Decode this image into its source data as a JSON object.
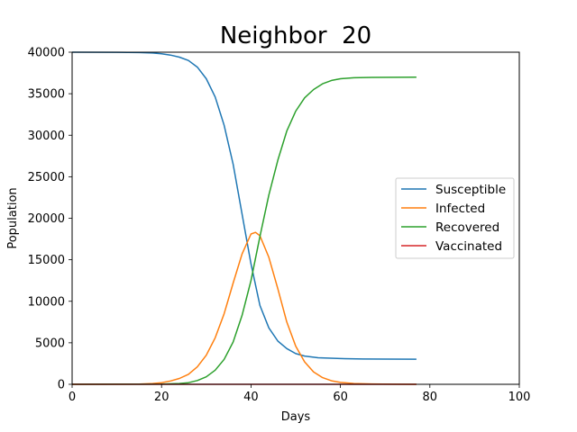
{
  "chart_data": {
    "type": "line",
    "title": "Neighbor  20",
    "xlabel": "Days",
    "ylabel": "Population",
    "xlim": [
      0,
      100
    ],
    "ylim": [
      0,
      40000
    ],
    "xticks": [
      0,
      20,
      40,
      60,
      80,
      100
    ],
    "yticks": [
      0,
      5000,
      10000,
      15000,
      20000,
      25000,
      30000,
      35000,
      40000
    ],
    "grid": false,
    "legend_position": "center-right",
    "series": [
      {
        "name": "Susceptible",
        "color": "#1f77b4",
        "points": [
          [
            0,
            40000
          ],
          [
            10,
            39990
          ],
          [
            15,
            39960
          ],
          [
            18,
            39900
          ],
          [
            20,
            39800
          ],
          [
            22,
            39650
          ],
          [
            24,
            39400
          ],
          [
            26,
            39000
          ],
          [
            28,
            38200
          ],
          [
            30,
            36800
          ],
          [
            32,
            34600
          ],
          [
            34,
            31200
          ],
          [
            36,
            26500
          ],
          [
            38,
            20500
          ],
          [
            40,
            14500
          ],
          [
            42,
            9500
          ],
          [
            44,
            6800
          ],
          [
            46,
            5200
          ],
          [
            48,
            4300
          ],
          [
            50,
            3700
          ],
          [
            52,
            3400
          ],
          [
            55,
            3200
          ],
          [
            60,
            3100
          ],
          [
            65,
            3050
          ],
          [
            70,
            3030
          ],
          [
            77,
            3020
          ]
        ]
      },
      {
        "name": "Infected",
        "color": "#ff7f0e",
        "points": [
          [
            0,
            0
          ],
          [
            10,
            10
          ],
          [
            15,
            30
          ],
          [
            18,
            100
          ],
          [
            20,
            200
          ],
          [
            22,
            400
          ],
          [
            24,
            700
          ],
          [
            26,
            1200
          ],
          [
            28,
            2100
          ],
          [
            30,
            3500
          ],
          [
            32,
            5600
          ],
          [
            34,
            8500
          ],
          [
            36,
            12200
          ],
          [
            38,
            15700
          ],
          [
            40,
            18100
          ],
          [
            41,
            18300
          ],
          [
            42,
            17900
          ],
          [
            44,
            15300
          ],
          [
            46,
            11500
          ],
          [
            48,
            7500
          ],
          [
            50,
            4600
          ],
          [
            52,
            2700
          ],
          [
            54,
            1500
          ],
          [
            56,
            800
          ],
          [
            58,
            420
          ],
          [
            60,
            230
          ],
          [
            63,
            100
          ],
          [
            67,
            40
          ],
          [
            72,
            15
          ],
          [
            77,
            5
          ]
        ]
      },
      {
        "name": "Recovered",
        "color": "#2ca02c",
        "points": [
          [
            0,
            0
          ],
          [
            15,
            10
          ],
          [
            20,
            30
          ],
          [
            24,
            100
          ],
          [
            26,
            200
          ],
          [
            28,
            450
          ],
          [
            30,
            900
          ],
          [
            32,
            1700
          ],
          [
            34,
            3000
          ],
          [
            36,
            5100
          ],
          [
            38,
            8300
          ],
          [
            40,
            12500
          ],
          [
            42,
            17800
          ],
          [
            44,
            22800
          ],
          [
            46,
            27000
          ],
          [
            48,
            30500
          ],
          [
            50,
            32900
          ],
          [
            52,
            34500
          ],
          [
            54,
            35500
          ],
          [
            56,
            36200
          ],
          [
            58,
            36600
          ],
          [
            60,
            36800
          ],
          [
            63,
            36920
          ],
          [
            67,
            36960
          ],
          [
            72,
            36980
          ],
          [
            77,
            36990
          ]
        ]
      },
      {
        "name": "Vaccinated",
        "color": "#d62728",
        "points": [
          [
            0,
            0
          ],
          [
            77,
            0
          ]
        ]
      }
    ]
  }
}
